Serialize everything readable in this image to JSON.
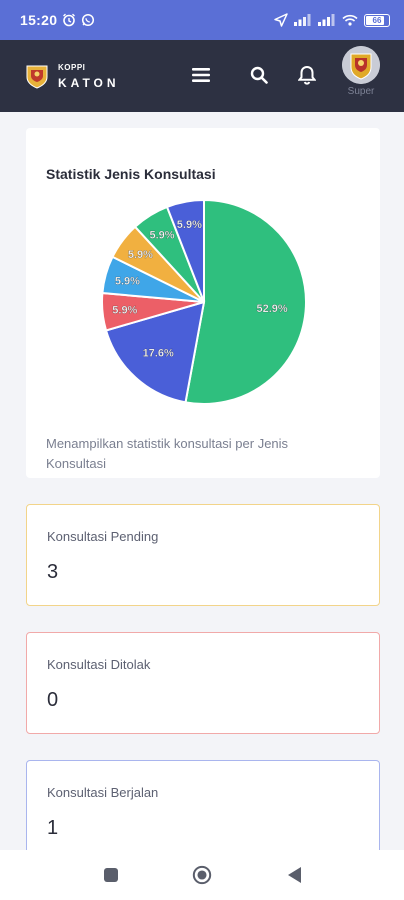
{
  "status_bar": {
    "time": "15:20",
    "battery": "66"
  },
  "header": {
    "brand_small": "KOPPI",
    "brand_big": "KATON",
    "user_name": "Super"
  },
  "chart_card": {
    "title": "Statistik Jenis Konsultasi",
    "description": "Menampilkan statistik konsultasi per Jenis Konsultasi"
  },
  "chart_data": {
    "type": "pie",
    "slices": [
      {
        "label": "52.9%",
        "value": 52.9,
        "color": "#2fbf7e"
      },
      {
        "label": "17.6%",
        "value": 17.6,
        "color": "#4a5fd8"
      },
      {
        "label": "5.9%",
        "value": 5.9,
        "color": "#ec5f67"
      },
      {
        "label": "5.9%",
        "value": 5.9,
        "color": "#3fa6e8"
      },
      {
        "label": "5.9%",
        "value": 5.9,
        "color": "#f1b040"
      },
      {
        "label": "5.9%",
        "value": 5.9,
        "color": "#2fbf7e"
      },
      {
        "label": "5.9%",
        "value": 5.9,
        "color": "#4a5fd8"
      }
    ]
  },
  "stats": {
    "pending": {
      "label": "Konsultasi Pending",
      "value": "3"
    },
    "ditolak": {
      "label": "Konsultasi Ditolak",
      "value": "0"
    },
    "berjalan": {
      "label": "Konsultasi Berjalan",
      "value": "1"
    }
  },
  "icons": {
    "alarm": "alarm-icon",
    "whatsapp": "whatsapp-icon",
    "location": "location-arrow-icon",
    "signal": "signal-icon",
    "wifi": "wifi-icon",
    "menu": "menu-icon",
    "search": "search-icon",
    "bell": "bell-icon"
  }
}
